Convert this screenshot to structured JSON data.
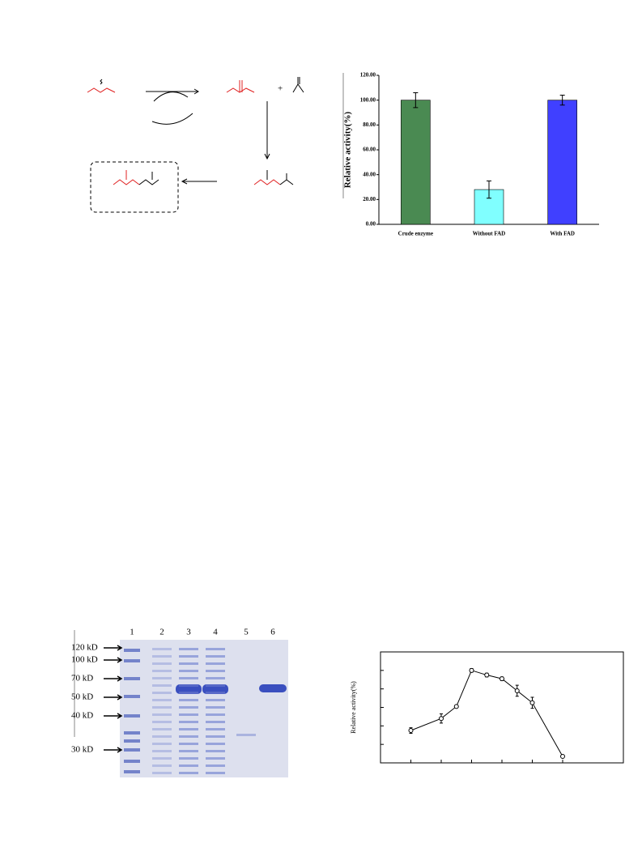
{
  "scheme": {
    "plus": "+"
  },
  "chart_data": [
    {
      "type": "bar",
      "y_label": "Relative activity(%)",
      "categories": [
        "Crude enzyme",
        "Without FAD",
        "With FAD"
      ],
      "values": [
        100,
        28,
        100
      ],
      "errors": [
        6,
        7,
        4
      ],
      "colors": [
        "#4a8a52",
        "#80ffff",
        "#4040ff"
      ],
      "ylim": [
        0,
        120
      ],
      "yticks": [
        {
          "value": 0,
          "label": "0.00"
        },
        {
          "value": 20,
          "label": "20.00"
        },
        {
          "value": 40,
          "label": "40.00"
        },
        {
          "value": 60,
          "label": "60.00"
        },
        {
          "value": 80,
          "label": "80.00"
        },
        {
          "value": 100,
          "label": "100.00"
        },
        {
          "value": 120,
          "label": "120.00"
        }
      ]
    },
    {
      "type": "line",
      "y_label": "Relative activity(%)",
      "x": [
        2,
        4,
        5,
        6,
        7,
        8,
        9,
        10,
        12
      ],
      "values": [
        35,
        48,
        61,
        100,
        95,
        91,
        78,
        65,
        7
      ],
      "errors": [
        3,
        5,
        0,
        2,
        2,
        2,
        6,
        6,
        0
      ],
      "color": "#000000",
      "xlim": [
        0,
        16
      ],
      "ylim": [
        0,
        120
      ],
      "xticks": [
        2,
        4,
        6,
        8,
        10,
        12
      ],
      "yticks": [
        20,
        40,
        60,
        80,
        100
      ]
    }
  ],
  "gel": {
    "lanes": [
      "1",
      "2",
      "3",
      "4",
      "5",
      "6"
    ],
    "markers": [
      "120 kD",
      "100 kD",
      "70 kD",
      "50 kD",
      "40 kD",
      "30 kD"
    ]
  }
}
